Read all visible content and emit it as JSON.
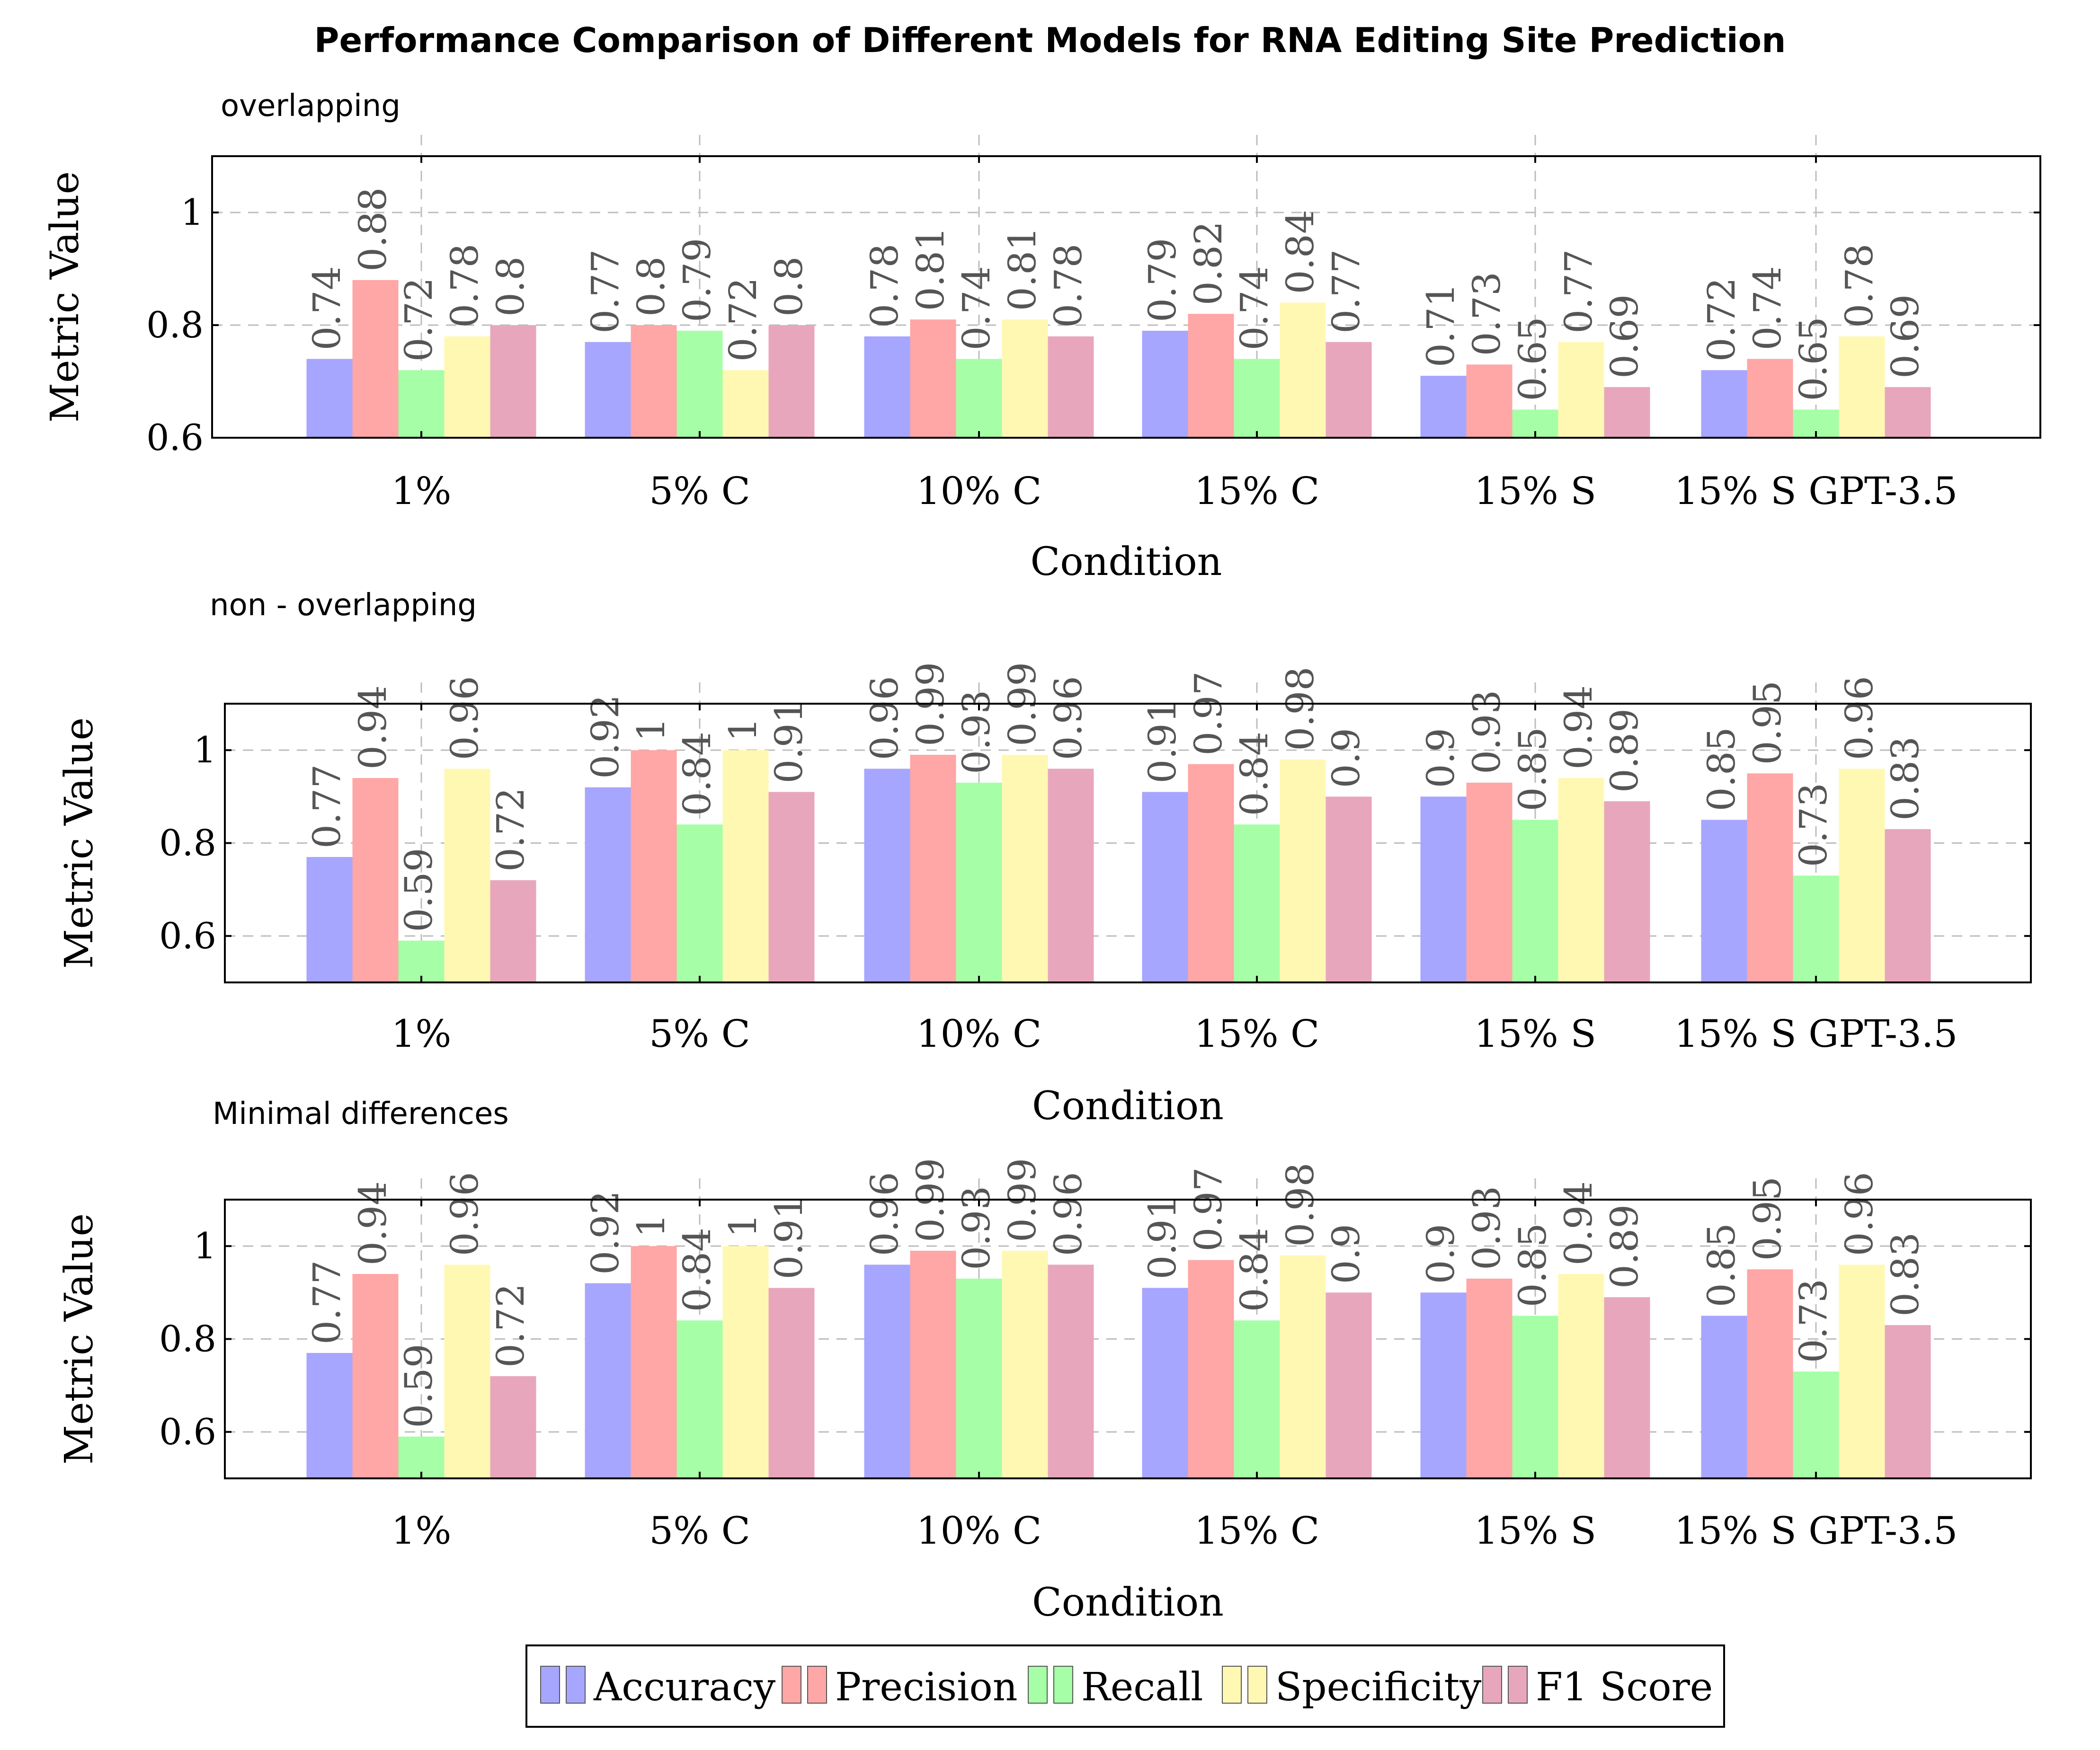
{
  "title": "Performance Comparison of Different Models for RNA Editing Site Prediction",
  "colors": {
    "Accuracy": "#a6a6ff",
    "Precision": "#ffa6a6",
    "Recall": "#a6ffa6",
    "Specificity": "#fff8b3",
    "F1 Score": "#e8a6bd"
  },
  "legend": {
    "items": [
      "Accuracy",
      "Precision",
      "Recall",
      "Specificity",
      "F1 Score"
    ]
  },
  "chart_data": [
    {
      "type": "bar",
      "subtitle": "overlapping",
      "xlabel": "Condition",
      "ylabel": "Metric Value",
      "ylim": [
        0.6,
        1.1
      ],
      "yticks": [
        0.6,
        0.8,
        1
      ],
      "grid": true,
      "categories": [
        "1%",
        "5% C",
        "10% C",
        "15% C",
        "15% S",
        "15% S GPT-3.5"
      ],
      "series": [
        {
          "name": "Accuracy",
          "values": [
            0.74,
            0.77,
            0.78,
            0.79,
            0.71,
            0.72
          ]
        },
        {
          "name": "Precision",
          "values": [
            0.88,
            0.8,
            0.81,
            0.82,
            0.73,
            0.74
          ]
        },
        {
          "name": "Recall",
          "values": [
            0.72,
            0.79,
            0.74,
            0.74,
            0.65,
            0.65
          ]
        },
        {
          "name": "Specificity",
          "values": [
            0.78,
            0.72,
            0.81,
            0.84,
            0.77,
            0.78
          ]
        },
        {
          "name": "F1 Score",
          "values": [
            0.8,
            0.8,
            0.78,
            0.77,
            0.69,
            0.69
          ]
        }
      ]
    },
    {
      "type": "bar",
      "subtitle": "non - overlapping",
      "xlabel": "Condition",
      "ylabel": "Metric Value",
      "ylim": [
        0.5,
        1.1
      ],
      "yticks": [
        0.6,
        0.8,
        1
      ],
      "grid": true,
      "categories": [
        "1%",
        "5% C",
        "10% C",
        "15% C",
        "15% S",
        "15% S GPT-3.5"
      ],
      "series": [
        {
          "name": "Accuracy",
          "values": [
            0.77,
            0.92,
            0.96,
            0.91,
            0.9,
            0.85
          ]
        },
        {
          "name": "Precision",
          "values": [
            0.94,
            1,
            0.99,
            0.97,
            0.93,
            0.95
          ]
        },
        {
          "name": "Recall",
          "values": [
            0.59,
            0.84,
            0.93,
            0.84,
            0.85,
            0.73
          ]
        },
        {
          "name": "Specificity",
          "values": [
            0.96,
            1,
            0.99,
            0.98,
            0.94,
            0.96
          ]
        },
        {
          "name": "F1 Score",
          "values": [
            0.72,
            0.91,
            0.96,
            0.9,
            0.89,
            0.83
          ]
        }
      ]
    },
    {
      "type": "bar",
      "subtitle": "Minimal differences",
      "xlabel": "Condition",
      "ylabel": "Metric Value",
      "ylim": [
        0.5,
        1.1
      ],
      "yticks": [
        0.6,
        0.8,
        1
      ],
      "grid": true,
      "categories": [
        "1%",
        "5% C",
        "10% C",
        "15% C",
        "15% S",
        "15% S GPT-3.5"
      ],
      "series": [
        {
          "name": "Accuracy",
          "values": [
            0.77,
            0.92,
            0.96,
            0.91,
            0.9,
            0.85
          ]
        },
        {
          "name": "Precision",
          "values": [
            0.94,
            1,
            0.99,
            0.97,
            0.93,
            0.95
          ]
        },
        {
          "name": "Recall",
          "values": [
            0.59,
            0.84,
            0.93,
            0.84,
            0.85,
            0.73
          ]
        },
        {
          "name": "Specificity",
          "values": [
            0.96,
            1,
            0.99,
            0.98,
            0.94,
            0.96
          ]
        },
        {
          "name": "F1 Score",
          "values": [
            0.72,
            0.91,
            0.96,
            0.9,
            0.89,
            0.83
          ]
        }
      ]
    }
  ]
}
